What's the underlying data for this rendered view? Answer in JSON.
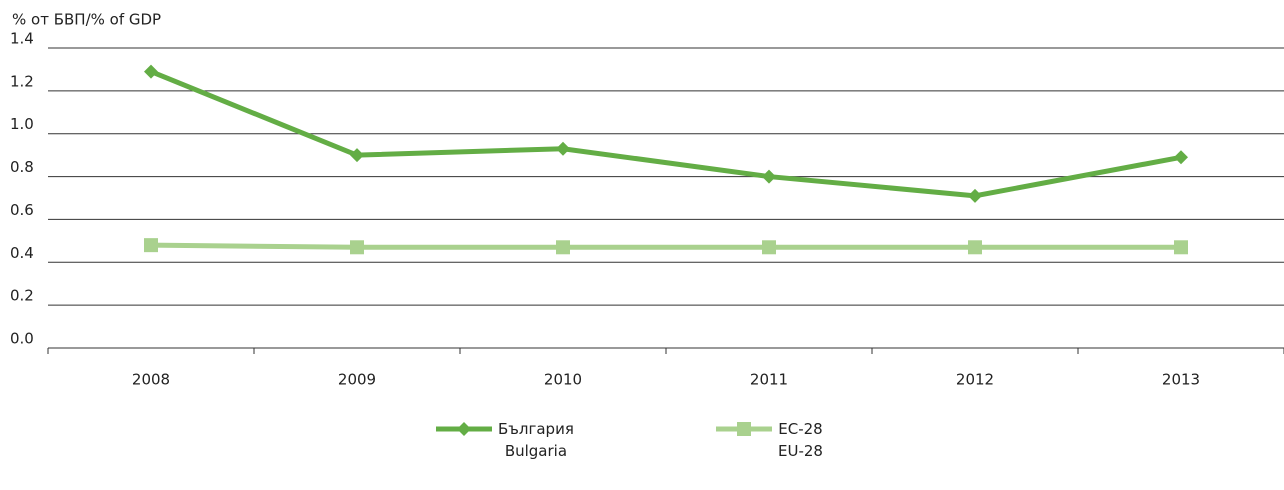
{
  "chart_data": {
    "type": "line",
    "y_label": "% от БВП/% of GDP",
    "categories": [
      "2008",
      "2009",
      "2010",
      "2011",
      "2012",
      "2013"
    ],
    "series": [
      {
        "name": "България\nBulgaria",
        "color": "#63ad45",
        "marker": "diamond",
        "values": [
          1.29,
          0.9,
          0.93,
          0.8,
          0.71,
          0.89
        ]
      },
      {
        "name": "ЕС-28\nEU-28",
        "color": "#a9d18e",
        "marker": "square",
        "values": [
          0.48,
          0.47,
          0.47,
          0.47,
          0.47,
          0.47
        ]
      }
    ],
    "ylim": [
      0,
      1.4
    ],
    "yticks": [
      {
        "value": 0,
        "label": "0.0"
      },
      0.2,
      0.4,
      0.6,
      0.8,
      {
        "value": 1,
        "label": "1.0"
      },
      1.2,
      1.4
    ],
    "grid": true
  }
}
